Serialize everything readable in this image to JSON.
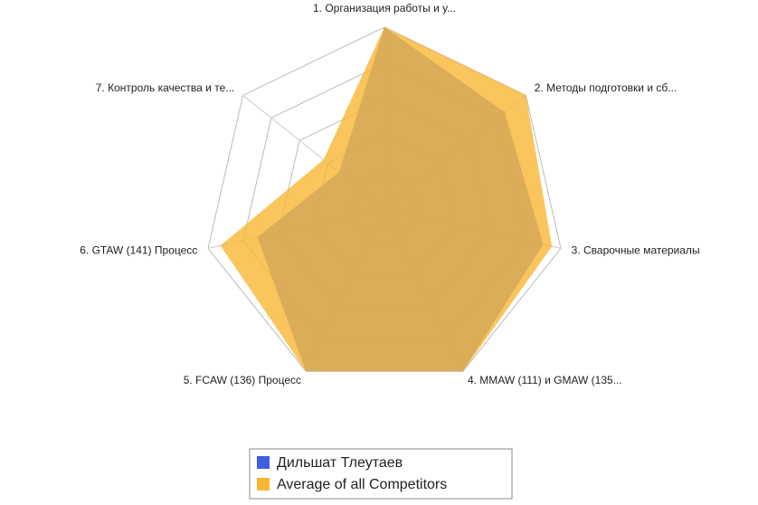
{
  "chart_data": {
    "type": "radar",
    "categories": [
      "1. Организация работы и у...",
      "2. Методы подготовки и сб...",
      "3. Сварочные материалы",
      "4. MMAW (111) и GMAW (135...",
      "5. FCAW (136) Процесс",
      "6. GTAW (141) Процесс",
      "7. Контроль качества и те..."
    ],
    "series": [
      {
        "name": "Дильшат Тлеутаев",
        "color": "#3f5fe0",
        "values": [
          100,
          85,
          90,
          100,
          100,
          72,
          32
        ]
      },
      {
        "name": "Average of all Competitors",
        "color": "#f7b733",
        "values": [
          100,
          100,
          95,
          100,
          100,
          93,
          43
        ]
      }
    ],
    "ylim": [
      0,
      100
    ],
    "yticks": [
      20,
      40,
      60,
      80,
      100
    ],
    "grid": true
  }
}
